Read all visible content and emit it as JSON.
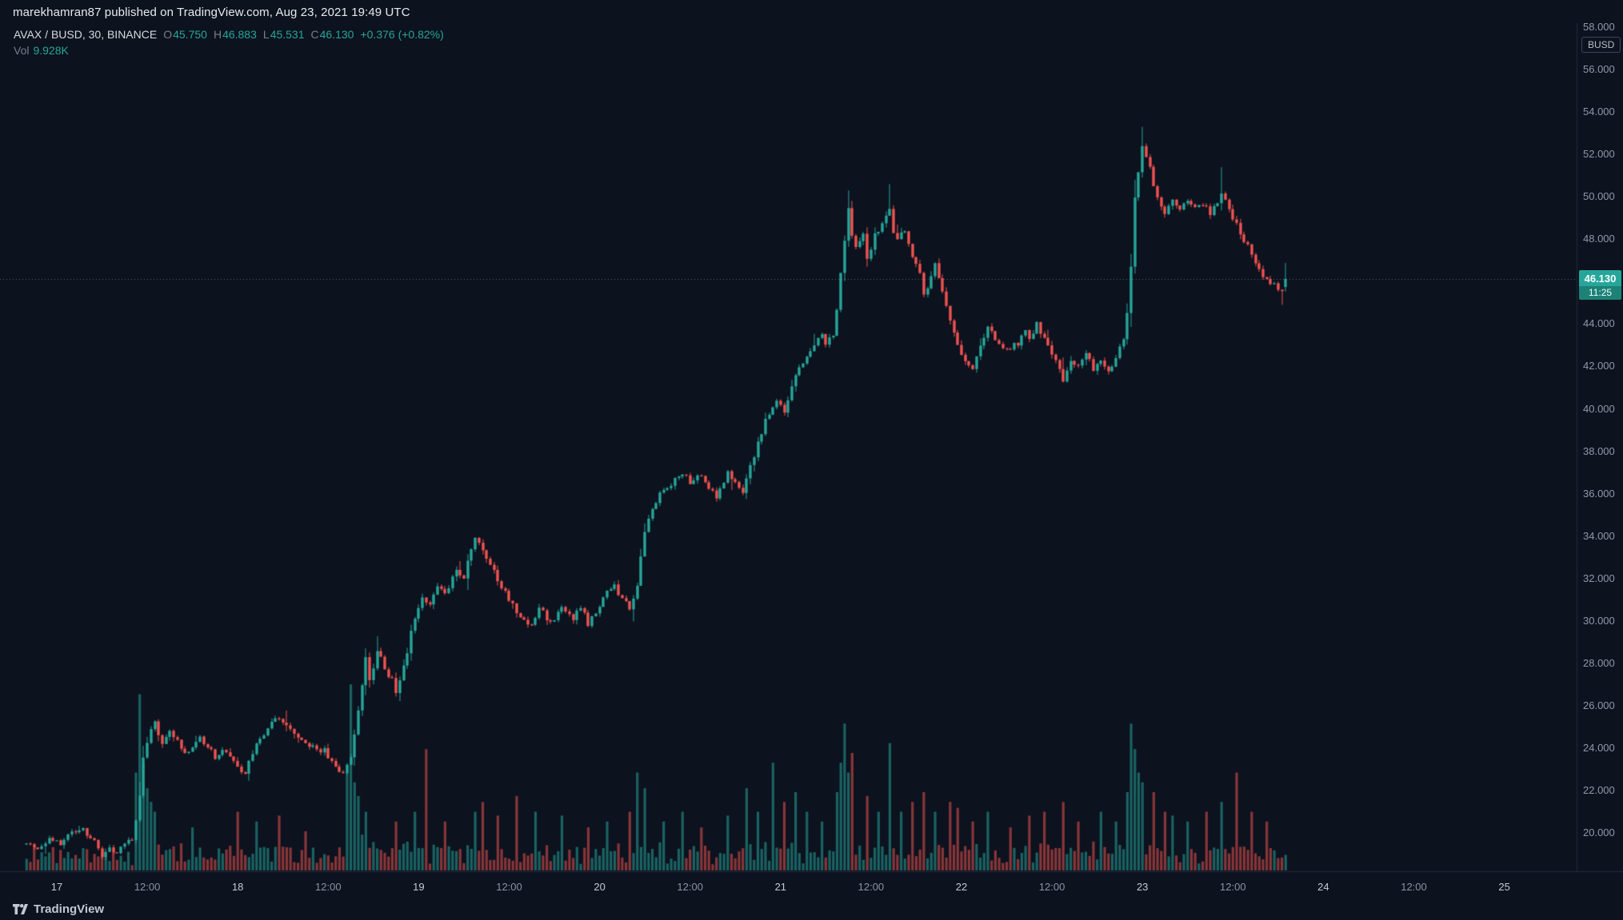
{
  "header": {
    "publish_line": "marekhamran87 published on TradingView.com, Aug 23, 2021 19:49 UTC"
  },
  "legend": {
    "symbol": "AVAX / BUSD, 30, BINANCE",
    "ohlc": {
      "o_label": "O",
      "o_value": "45.750",
      "h_label": "H",
      "h_value": "46.883",
      "l_label": "L",
      "l_value": "45.531",
      "c_label": "C",
      "c_value": "46.130",
      "change": "+0.376 (+0.82%)"
    },
    "vol_label": "Vol",
    "vol_value": "9.928K"
  },
  "price_scale": {
    "currency": "BUSD",
    "labels": [
      "58.000",
      "56.000",
      "54.000",
      "52.000",
      "50.000",
      "48.000",
      "46.000",
      "44.000",
      "42.000",
      "40.000",
      "38.000",
      "36.000",
      "34.000",
      "32.000",
      "30.000",
      "28.000",
      "26.000",
      "24.000",
      "22.000",
      "20.000"
    ],
    "last_price_badge": {
      "price": "46.130",
      "countdown": "11:25"
    }
  },
  "time_scale": {
    "labels": [
      "17",
      "12:00",
      "18",
      "12:00",
      "19",
      "12:00",
      "20",
      "12:00",
      "21",
      "12:00",
      "22",
      "12:00",
      "23",
      "12:00",
      "24",
      "12:00",
      "25"
    ]
  },
  "footer": {
    "brand": "TradingView"
  },
  "colors": {
    "background": "#0c121e",
    "up": "#26a69a",
    "down": "#ef5350",
    "vol_up": "rgba(38,166,154,0.55)",
    "vol_down": "rgba(239,83,80,0.55)",
    "axis_line": "#232a3a",
    "price_line": "rgba(164,170,181,0.55)",
    "badge_bg": "#26a69a",
    "axis_text": "#9199a6",
    "muted_text": "#787e8a"
  },
  "chart_data": {
    "type": "candlestick",
    "symbol": "AVAX/BUSD",
    "exchange": "BINANCE",
    "interval_minutes": 30,
    "bar_zero_time": "Aug 17 00:00 UTC",
    "bars_first_index": -8,
    "bars_last_index": 326,
    "bars_per_axis_tick": 24,
    "y_axis": {
      "min": 18.4,
      "max": 58.6,
      "tick_step": 2
    },
    "last_ohlc": {
      "open": 45.75,
      "high": 46.883,
      "low": 45.531,
      "close": 46.13
    },
    "last_volume_display": "9.928K",
    "price_line": 46.13,
    "close_path_anchors": [
      [
        -8,
        19.6
      ],
      [
        -5,
        19.2
      ],
      [
        -2,
        19.8
      ],
      [
        1,
        19.5
      ],
      [
        4,
        20.0
      ],
      [
        7,
        20.2
      ],
      [
        10,
        19.6
      ],
      [
        12,
        18.9
      ],
      [
        14,
        19.2
      ],
      [
        16,
        19.1
      ],
      [
        18,
        19.4
      ],
      [
        20,
        19.8
      ],
      [
        21,
        20.6
      ],
      [
        22,
        21.8
      ],
      [
        23,
        23.6
      ],
      [
        24,
        24.2
      ],
      [
        25,
        24.8
      ],
      [
        26,
        25.2
      ],
      [
        28,
        24.1
      ],
      [
        30,
        24.7
      ],
      [
        34,
        23.8
      ],
      [
        38,
        24.4
      ],
      [
        42,
        23.6
      ],
      [
        45,
        23.9
      ],
      [
        48,
        23.2
      ],
      [
        50,
        22.8
      ],
      [
        53,
        24.3
      ],
      [
        57,
        25.2
      ],
      [
        59,
        25.5
      ],
      [
        62,
        24.8
      ],
      [
        65,
        24.3
      ],
      [
        68,
        24.0
      ],
      [
        71,
        23.9
      ],
      [
        74,
        23.1
      ],
      [
        76,
        22.7
      ],
      [
        78,
        23.6
      ],
      [
        80,
        25.8
      ],
      [
        82,
        28.3
      ],
      [
        83,
        27.2
      ],
      [
        85,
        28.6
      ],
      [
        87,
        27.8
      ],
      [
        89,
        27.2
      ],
      [
        90,
        26.6
      ],
      [
        92,
        27.8
      ],
      [
        93,
        28.6
      ],
      [
        95,
        30.2
      ],
      [
        97,
        31.2
      ],
      [
        99,
        30.8
      ],
      [
        101,
        31.6
      ],
      [
        103,
        31.2
      ],
      [
        106,
        32.4
      ],
      [
        108,
        32.1
      ],
      [
        111,
        34.0
      ],
      [
        112,
        33.6
      ],
      [
        114,
        33.0
      ],
      [
        117,
        31.9
      ],
      [
        120,
        31.0
      ],
      [
        123,
        30.2
      ],
      [
        126,
        29.8
      ],
      [
        128,
        30.6
      ],
      [
        131,
        29.9
      ],
      [
        134,
        30.7
      ],
      [
        137,
        30.1
      ],
      [
        139,
        30.6
      ],
      [
        141,
        29.9
      ],
      [
        143,
        30.4
      ],
      [
        146,
        31.3
      ],
      [
        148,
        31.7
      ],
      [
        150,
        31.0
      ],
      [
        152,
        30.6
      ],
      [
        154,
        31.8
      ],
      [
        156,
        34.3
      ],
      [
        158,
        35.4
      ],
      [
        161,
        36.2
      ],
      [
        164,
        36.6
      ],
      [
        166,
        37.0
      ],
      [
        168,
        36.6
      ],
      [
        171,
        36.9
      ],
      [
        173,
        36.3
      ],
      [
        175,
        35.9
      ],
      [
        177,
        36.5
      ],
      [
        178,
        37.1
      ],
      [
        180,
        36.5
      ],
      [
        182,
        36.1
      ],
      [
        184,
        37.2
      ],
      [
        186,
        38.4
      ],
      [
        188,
        39.5
      ],
      [
        190,
        40.1
      ],
      [
        191,
        40.4
      ],
      [
        193,
        39.7
      ],
      [
        195,
        41.0
      ],
      [
        197,
        41.9
      ],
      [
        199,
        42.4
      ],
      [
        201,
        43.0
      ],
      [
        203,
        43.4
      ],
      [
        204,
        42.9
      ],
      [
        206,
        43.6
      ],
      [
        207,
        44.8
      ],
      [
        209,
        48.0
      ],
      [
        210,
        49.4
      ],
      [
        211,
        48.2
      ],
      [
        212,
        47.6
      ],
      [
        214,
        48.3
      ],
      [
        215,
        47.1
      ],
      [
        217,
        48.2
      ],
      [
        219,
        48.8
      ],
      [
        221,
        49.5
      ],
      [
        222,
        48.4
      ],
      [
        223,
        47.9
      ],
      [
        225,
        48.5
      ],
      [
        227,
        47.2
      ],
      [
        229,
        46.3
      ],
      [
        230,
        45.4
      ],
      [
        232,
        46.2
      ],
      [
        233,
        46.8
      ],
      [
        235,
        45.6
      ],
      [
        237,
        44.3
      ],
      [
        239,
        43.1
      ],
      [
        241,
        42.3
      ],
      [
        243,
        42.0
      ],
      [
        245,
        42.9
      ],
      [
        247,
        44.0
      ],
      [
        249,
        43.2
      ],
      [
        251,
        42.8
      ],
      [
        253,
        42.9
      ],
      [
        255,
        43.1
      ],
      [
        257,
        43.7
      ],
      [
        258,
        43.3
      ],
      [
        260,
        44.0
      ],
      [
        262,
        43.3
      ],
      [
        264,
        42.6
      ],
      [
        266,
        41.9
      ],
      [
        267,
        41.3
      ],
      [
        269,
        42.2
      ],
      [
        271,
        42.0
      ],
      [
        273,
        42.5
      ],
      [
        275,
        41.9
      ],
      [
        277,
        42.4
      ],
      [
        279,
        41.7
      ],
      [
        281,
        42.3
      ],
      [
        283,
        43.3
      ],
      [
        284,
        44.6
      ],
      [
        285,
        46.8
      ],
      [
        286,
        49.9
      ],
      [
        287,
        51.2
      ],
      [
        288,
        52.4
      ],
      [
        289,
        52.0
      ],
      [
        291,
        50.6
      ],
      [
        293,
        49.6
      ],
      [
        294,
        49.2
      ],
      [
        296,
        49.9
      ],
      [
        298,
        49.5
      ],
      [
        300,
        49.9
      ],
      [
        302,
        49.4
      ],
      [
        304,
        49.7
      ],
      [
        306,
        49.2
      ],
      [
        307,
        49.6
      ],
      [
        309,
        50.1
      ],
      [
        311,
        49.4
      ],
      [
        313,
        48.7
      ],
      [
        315,
        48.0
      ],
      [
        317,
        47.3
      ],
      [
        319,
        46.6
      ],
      [
        321,
        46.1
      ],
      [
        323,
        45.9
      ],
      [
        325,
        45.5
      ],
      [
        326,
        46.13
      ]
    ],
    "wick_extremes": [
      {
        "i": 288,
        "high": 53.3
      },
      {
        "i": 221,
        "high": 50.6
      },
      {
        "i": 210,
        "high": 50.3
      },
      {
        "i": 309,
        "high": 51.4
      },
      {
        "i": 156,
        "high": 34.6
      },
      {
        "i": 325,
        "low": 44.9
      },
      {
        "i": 12,
        "low": 18.75
      }
    ],
    "volume_spikes": [
      [
        21,
        0.5
      ],
      [
        22,
        0.9
      ],
      [
        23,
        0.55
      ],
      [
        24,
        0.42
      ],
      [
        25,
        0.35
      ],
      [
        26,
        0.3
      ],
      [
        36,
        0.22
      ],
      [
        48,
        0.3
      ],
      [
        53,
        0.25
      ],
      [
        59,
        0.28
      ],
      [
        66,
        0.2
      ],
      [
        77,
        0.5
      ],
      [
        78,
        0.95
      ],
      [
        79,
        0.45
      ],
      [
        80,
        0.38
      ],
      [
        82,
        0.3
      ],
      [
        90,
        0.25
      ],
      [
        95,
        0.3
      ],
      [
        98,
        0.62
      ],
      [
        103,
        0.25
      ],
      [
        111,
        0.3
      ],
      [
        113,
        0.35
      ],
      [
        117,
        0.28
      ],
      [
        122,
        0.38
      ],
      [
        127,
        0.3
      ],
      [
        134,
        0.28
      ],
      [
        141,
        0.22
      ],
      [
        146,
        0.25
      ],
      [
        152,
        0.3
      ],
      [
        154,
        0.5
      ],
      [
        156,
        0.42
      ],
      [
        161,
        0.25
      ],
      [
        166,
        0.3
      ],
      [
        171,
        0.22
      ],
      [
        178,
        0.28
      ],
      [
        183,
        0.42
      ],
      [
        186,
        0.3
      ],
      [
        190,
        0.55
      ],
      [
        193,
        0.35
      ],
      [
        196,
        0.4
      ],
      [
        199,
        0.3
      ],
      [
        203,
        0.25
      ],
      [
        207,
        0.4
      ],
      [
        208,
        0.55
      ],
      [
        209,
        0.75
      ],
      [
        210,
        0.5
      ],
      [
        211,
        0.6
      ],
      [
        215,
        0.38
      ],
      [
        218,
        0.3
      ],
      [
        221,
        0.65
      ],
      [
        224,
        0.3
      ],
      [
        227,
        0.35
      ],
      [
        230,
        0.4
      ],
      [
        233,
        0.3
      ],
      [
        237,
        0.35
      ],
      [
        239,
        0.32
      ],
      [
        243,
        0.25
      ],
      [
        247,
        0.3
      ],
      [
        253,
        0.22
      ],
      [
        258,
        0.28
      ],
      [
        262,
        0.3
      ],
      [
        267,
        0.35
      ],
      [
        271,
        0.25
      ],
      [
        277,
        0.3
      ],
      [
        281,
        0.25
      ],
      [
        284,
        0.4
      ],
      [
        285,
        0.75
      ],
      [
        286,
        0.62
      ],
      [
        287,
        0.5
      ],
      [
        288,
        0.45
      ],
      [
        291,
        0.4
      ],
      [
        294,
        0.3
      ],
      [
        296,
        0.28
      ],
      [
        300,
        0.25
      ],
      [
        305,
        0.3
      ],
      [
        309,
        0.35
      ],
      [
        313,
        0.5
      ],
      [
        317,
        0.3
      ],
      [
        321,
        0.25
      ],
      [
        326,
        0.08
      ]
    ]
  }
}
